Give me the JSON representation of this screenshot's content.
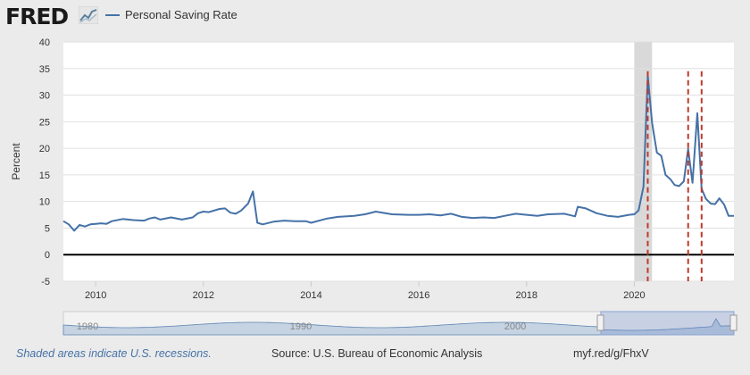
{
  "header": {
    "logo": "FRED",
    "logo_icon": "chart-line-icon",
    "legend_label": "Personal Saving Rate"
  },
  "footer": {
    "recession_note": "Shaded areas indicate U.S. recessions.",
    "source": "Source: U.S. Bureau of Economic Analysis",
    "url": "myf.red/g/FhxV"
  },
  "navigator": {
    "tick_labels": [
      "1980",
      "1990",
      "2000"
    ],
    "selected_range": [
      "2009.4",
      "2021.8"
    ]
  },
  "colors": {
    "series": "#4572a7",
    "recession_shade": "#d9d9d9",
    "markers": "#c0392b",
    "plot_bg": "#ffffff",
    "page_bg": "#ebebeb"
  },
  "chart_data": {
    "type": "line",
    "title": "",
    "xlabel": "",
    "ylabel": "Percent",
    "xlim": [
      2009.4,
      2021.85
    ],
    "ylim": [
      -5,
      40
    ],
    "y_ticks": [
      -5,
      0,
      5,
      10,
      15,
      20,
      25,
      30,
      35,
      40
    ],
    "x_ticks": [
      2010,
      2012,
      2014,
      2016,
      2018,
      2020
    ],
    "x_tick_labels": [
      "2010",
      "2012",
      "2014",
      "2016",
      "2018",
      "2020"
    ],
    "grid": true,
    "legend": "top-left",
    "recessions": [
      [
        2020.0,
        2020.33
      ]
    ],
    "markers": [
      2020.25,
      2021.0,
      2021.25
    ],
    "series": [
      {
        "name": "Personal Saving Rate",
        "x": [
          2009.4,
          2009.5,
          2009.6,
          2009.7,
          2009.8,
          2009.9,
          2010.0,
          2010.1,
          2010.2,
          2010.3,
          2010.5,
          2010.7,
          2010.9,
          2011.0,
          2011.1,
          2011.2,
          2011.4,
          2011.6,
          2011.8,
          2011.9,
          2012.0,
          2012.1,
          2012.3,
          2012.4,
          2012.5,
          2012.6,
          2012.7,
          2012.83,
          2012.92,
          2013.0,
          2013.1,
          2013.3,
          2013.5,
          2013.7,
          2013.9,
          2014.0,
          2014.3,
          2014.5,
          2014.8,
          2015.0,
          2015.2,
          2015.5,
          2015.8,
          2016.0,
          2016.2,
          2016.4,
          2016.6,
          2016.8,
          2017.0,
          2017.2,
          2017.4,
          2017.6,
          2017.8,
          2018.0,
          2018.2,
          2018.4,
          2018.7,
          2018.9,
          2018.95,
          2019.1,
          2019.3,
          2019.5,
          2019.7,
          2019.9,
          2020.0,
          2020.08,
          2020.17,
          2020.25,
          2020.33,
          2020.42,
          2020.5,
          2020.58,
          2020.67,
          2020.75,
          2020.83,
          2020.92,
          2021.0,
          2021.08,
          2021.17,
          2021.25,
          2021.33,
          2021.42,
          2021.5,
          2021.58,
          2021.67,
          2021.75,
          2021.85
        ],
        "values": [
          6.3,
          5.7,
          4.5,
          5.6,
          5.3,
          5.7,
          5.8,
          5.9,
          5.8,
          6.3,
          6.7,
          6.5,
          6.4,
          6.8,
          7.0,
          6.6,
          7.0,
          6.6,
          7.0,
          7.8,
          8.1,
          8.0,
          8.6,
          8.7,
          7.9,
          7.7,
          8.3,
          9.6,
          11.9,
          6.0,
          5.7,
          6.2,
          6.4,
          6.3,
          6.3,
          6.0,
          6.8,
          7.1,
          7.3,
          7.6,
          8.1,
          7.6,
          7.5,
          7.5,
          7.6,
          7.4,
          7.7,
          7.1,
          6.9,
          7.0,
          6.9,
          7.3,
          7.7,
          7.5,
          7.3,
          7.6,
          7.7,
          7.2,
          9.0,
          8.7,
          7.8,
          7.3,
          7.1,
          7.5,
          7.6,
          8.3,
          12.8,
          33.7,
          24.8,
          19.2,
          18.6,
          15.0,
          14.2,
          13.1,
          12.9,
          13.8,
          19.9,
          13.5,
          26.6,
          12.4,
          10.5,
          9.6,
          9.5,
          10.6,
          9.4,
          7.3,
          7.3
        ]
      }
    ]
  }
}
